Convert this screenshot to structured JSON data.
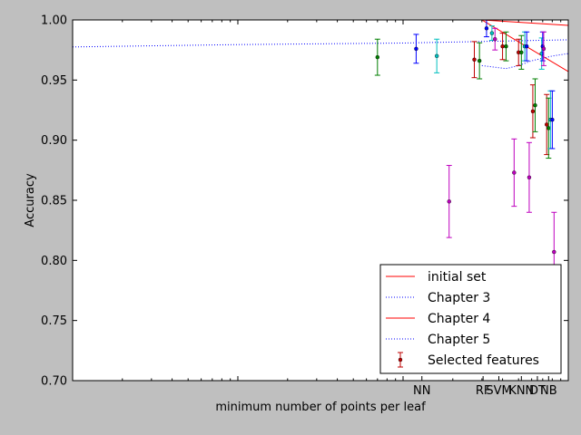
{
  "chart_data": {
    "type": "scatter",
    "title": "",
    "xlabel": "minimum number of points per leaf",
    "ylabel": "Accuracy",
    "xscale": "log",
    "xlim": [
      1,
      1000
    ],
    "ylim": [
      0.7,
      1.0
    ],
    "yticks": [
      "0.70",
      "0.75",
      "0.80",
      "0.85",
      "0.90",
      "0.95",
      "1.00"
    ],
    "category_ticks": [
      {
        "label": "NN",
        "x": 130
      },
      {
        "label": "RF",
        "x": 305
      },
      {
        "label": "SVM",
        "x": 380
      },
      {
        "label": "KNN",
        "x": 520
      },
      {
        "label": "DT",
        "x": 650
      },
      {
        "label": "NB",
        "x": 760
      }
    ],
    "lines": [
      {
        "name": "initial set",
        "style": "solid",
        "color": "#ff0000",
        "points": [
          [
            1,
            1.0
          ],
          [
            300,
            1.0
          ],
          [
            1000,
            0.9955
          ]
        ]
      },
      {
        "name": "Chapter 3",
        "style": "dotted",
        "color": "#0000ff",
        "points": [
          [
            1,
            0.9775
          ],
          [
            10,
            0.9795
          ],
          [
            100,
            0.9808
          ],
          [
            1000,
            0.9835
          ]
        ]
      },
      {
        "name": "Chapter 4",
        "style": "solid",
        "color": "#ff0000",
        "points": [
          [
            300,
            1.0
          ],
          [
            1000,
            0.957
          ]
        ]
      },
      {
        "name": "Chapter 5",
        "style": "dotted",
        "color": "#0000ff",
        "points": [
          [
            300,
            0.962
          ],
          [
            420,
            0.9595
          ],
          [
            500,
            0.962
          ],
          [
            600,
            0.966
          ],
          [
            800,
            0.97
          ],
          [
            1000,
            0.972
          ]
        ]
      }
    ],
    "errorbar_legend": "Selected features",
    "errorbars": [
      {
        "x": 70,
        "y": 0.969,
        "err": 0.015,
        "color": "#007f00"
      },
      {
        "x": 120,
        "y": 0.976,
        "err": 0.012,
        "color": "#0000ff"
      },
      {
        "x": 160,
        "y": 0.97,
        "err": 0.014,
        "color": "#00bfbf"
      },
      {
        "x": 190,
        "y": 0.849,
        "err": 0.03,
        "color": "#bf00bf"
      },
      {
        "x": 270,
        "y": 0.967,
        "err": 0.015,
        "color": "#bf0000"
      },
      {
        "x": 290,
        "y": 0.966,
        "err": 0.015,
        "color": "#007f00"
      },
      {
        "x": 320,
        "y": 0.993,
        "err": 0.007,
        "color": "#0000ff"
      },
      {
        "x": 345,
        "y": 0.989,
        "err": 0.006,
        "color": "#00bfbf"
      },
      {
        "x": 360,
        "y": 0.984,
        "err": 0.009,
        "color": "#bf00bf"
      },
      {
        "x": 400,
        "y": 0.978,
        "err": 0.011,
        "color": "#bf0000"
      },
      {
        "x": 420,
        "y": 0.978,
        "err": 0.012,
        "color": "#007f00"
      },
      {
        "x": 470,
        "y": 0.873,
        "err": 0.028,
        "color": "#bf00bf"
      },
      {
        "x": 500,
        "y": 0.973,
        "err": 0.011,
        "color": "#bf0000"
      },
      {
        "x": 520,
        "y": 0.973,
        "err": 0.014,
        "color": "#007f00"
      },
      {
        "x": 545,
        "y": 0.978,
        "err": 0.012,
        "color": "#00bfbf"
      },
      {
        "x": 560,
        "y": 0.978,
        "err": 0.012,
        "color": "#0000ff"
      },
      {
        "x": 580,
        "y": 0.869,
        "err": 0.029,
        "color": "#bf00bf"
      },
      {
        "x": 610,
        "y": 0.924,
        "err": 0.022,
        "color": "#bf0000"
      },
      {
        "x": 630,
        "y": 0.929,
        "err": 0.022,
        "color": "#007f00"
      },
      {
        "x": 690,
        "y": 0.972,
        "err": 0.013,
        "color": "#00bfbf"
      },
      {
        "x": 700,
        "y": 0.978,
        "err": 0.012,
        "color": "#0000ff"
      },
      {
        "x": 710,
        "y": 0.976,
        "err": 0.014,
        "color": "#bf00bf"
      },
      {
        "x": 740,
        "y": 0.913,
        "err": 0.025,
        "color": "#bf0000"
      },
      {
        "x": 760,
        "y": 0.91,
        "err": 0.025,
        "color": "#007f00"
      },
      {
        "x": 780,
        "y": 0.917,
        "err": 0.024,
        "color": "#00bfbf"
      },
      {
        "x": 800,
        "y": 0.917,
        "err": 0.024,
        "color": "#0000ff"
      },
      {
        "x": 820,
        "y": 0.807,
        "err": 0.033,
        "color": "#bf00bf"
      }
    ],
    "legend": {
      "position": "lower-right",
      "entries": [
        {
          "label": "initial set",
          "kind": "line",
          "style": "solid",
          "color": "#ff0000"
        },
        {
          "label": "Chapter 3",
          "kind": "line",
          "style": "dotted",
          "color": "#0000ff"
        },
        {
          "label": "Chapter 4",
          "kind": "line",
          "style": "solid",
          "color": "#ff0000"
        },
        {
          "label": "Chapter 5",
          "kind": "line",
          "style": "dotted",
          "color": "#0000ff"
        },
        {
          "label": "Selected features",
          "kind": "errorbar",
          "color": "#bf0000"
        }
      ]
    }
  }
}
